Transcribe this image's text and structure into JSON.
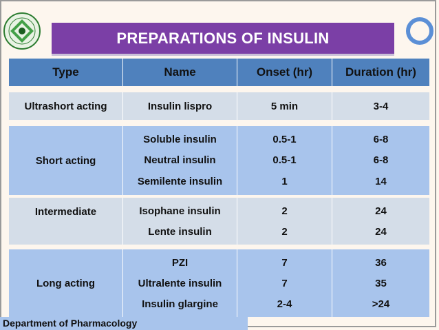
{
  "title": "PREPARATIONS OF INSULIN",
  "footer": "Department of Pharmacology",
  "columns": [
    "Type",
    "Name",
    "Onset (hr)",
    "Duration (hr)"
  ],
  "rows": [
    {
      "type": "Ultrashort acting",
      "names": [
        "Insulin lispro"
      ],
      "onset": [
        "5 min"
      ],
      "duration": [
        "3-4"
      ]
    },
    {
      "type": "Short acting",
      "names": [
        "Soluble insulin",
        "Neutral insulin",
        "Semilente insulin"
      ],
      "onset": [
        "0.5-1",
        "0.5-1",
        "1"
      ],
      "duration": [
        "6-8",
        "6-8",
        "14"
      ]
    },
    {
      "type": "Intermediate",
      "names": [
        "Isophane insulin",
        "Lente insulin"
      ],
      "onset": [
        "2",
        "2"
      ],
      "duration": [
        "24",
        "24"
      ]
    },
    {
      "type": "Long acting",
      "names": [
        "PZI",
        "Ultralente insulin",
        "Insulin glargine"
      ],
      "onset": [
        "7",
        "7",
        "2-4"
      ],
      "duration": [
        "36",
        "35",
        ">24"
      ]
    }
  ],
  "colors": {
    "title_bg": "#7b3fa6",
    "header_bg": "#4f81bd",
    "row_light": "#d4dde8",
    "row_blue": "#a8c4ec",
    "ring": "#5b8fd6"
  },
  "icons": {
    "logo": "university-emblem-icon",
    "decoration": "ring-icon"
  }
}
